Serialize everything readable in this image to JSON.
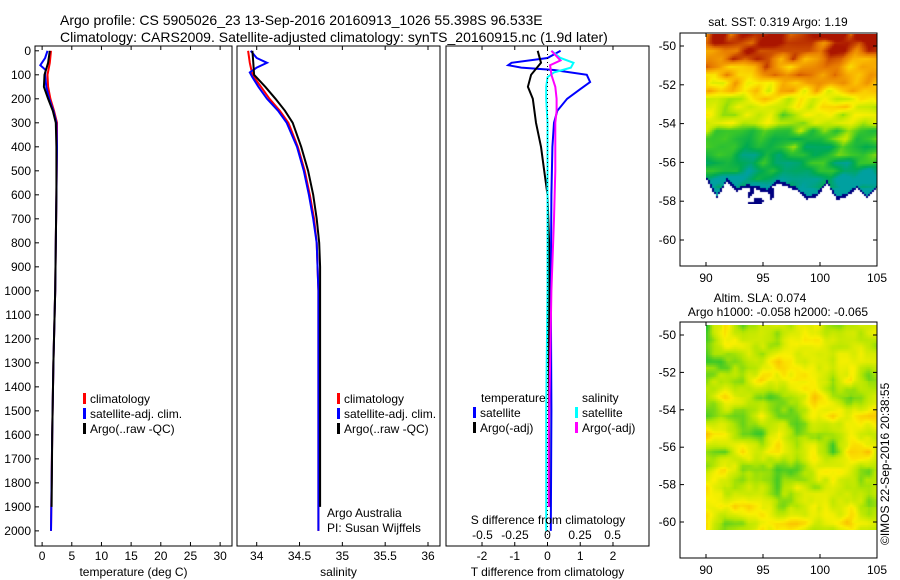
{
  "title_line1": "Argo profile: CS 5905026_23 13-Sep-2016 20160913_1026 55.398S 96.533E",
  "title_line2": "Climatology: CARS2009. Satellite-adjusted climatology: synTS_20160915.nc (1.9d later)",
  "colors": {
    "climatology": "#ff0000",
    "satellite": "#0000ff",
    "argo": "#000000",
    "sal_satellite": "#00ffff",
    "sal_argo": "#ff00ff"
  },
  "chart_data": [
    {
      "type": "line",
      "name": "temperature",
      "xlabel": "temperature (deg C)",
      "ylabel": "depth",
      "xlim": [
        -1.2,
        32
      ],
      "ylim": [
        2063,
        -20
      ],
      "xticks": [
        0,
        5,
        10,
        15,
        20,
        25,
        30
      ],
      "yticks": [
        0,
        100,
        200,
        300,
        400,
        500,
        600,
        700,
        800,
        900,
        1000,
        1100,
        1200,
        1300,
        1400,
        1500,
        1600,
        1700,
        1800,
        1900,
        2000
      ],
      "legend": [
        "climatology",
        "satellite-adj. clim.",
        "Argo(..raw -QC)"
      ],
      "series": [
        {
          "name": "climatology",
          "color": "#ff0000",
          "depth": [
            0,
            50,
            100,
            150,
            200,
            250,
            300,
            400,
            600,
            800,
            1000,
            1300,
            1600,
            2000
          ],
          "values": [
            1.5,
            1.3,
            0.9,
            1.0,
            1.4,
            2.0,
            2.5,
            2.5,
            2.4,
            2.3,
            2.2,
            1.9,
            1.7,
            1.5
          ]
        },
        {
          "name": "satellite-adj. clim.",
          "color": "#0000ff",
          "depth": [
            0,
            30,
            60,
            80,
            100,
            150,
            200,
            250,
            300,
            400,
            600,
            800,
            1000,
            1300,
            1600,
            2000
          ],
          "values": [
            0.9,
            0.5,
            -0.3,
            0.6,
            0.5,
            0.7,
            1.2,
            1.9,
            2.4,
            2.5,
            2.4,
            2.3,
            2.2,
            1.9,
            1.7,
            1.5
          ]
        },
        {
          "name": "Argo(..raw -QC)",
          "color": "#000000",
          "depth": [
            0,
            50,
            100,
            150,
            200,
            250,
            300,
            400,
            600,
            800,
            1000,
            1300,
            1600,
            1900
          ],
          "values": [
            1.3,
            1.0,
            0.4,
            0.3,
            1.0,
            1.8,
            2.3,
            2.4,
            2.4,
            2.3,
            2.2,
            1.9,
            1.7,
            1.6
          ]
        }
      ]
    },
    {
      "type": "line",
      "name": "salinity",
      "xlabel": "salinity",
      "xlim": [
        33.77,
        36.14
      ],
      "ylim": [
        2063,
        -20
      ],
      "xticks": [
        "34",
        "34.5",
        "35",
        "35.5",
        "36"
      ],
      "legend": [
        "climatology",
        "satellite-adj. clim.",
        "Argo(..raw -QC)"
      ],
      "annotation": [
        "Argo Australia",
        "PI: Susan Wijffels"
      ],
      "series": [
        {
          "name": "climatology",
          "color": "#ff0000",
          "depth": [
            0,
            50,
            100,
            150,
            200,
            250,
            300,
            400,
            500,
            600,
            700,
            800,
            1000,
            1500,
            2000
          ],
          "values": [
            33.9,
            33.92,
            33.95,
            34.05,
            34.15,
            34.27,
            34.37,
            34.48,
            34.56,
            34.62,
            34.67,
            34.7,
            34.72,
            34.72,
            34.72
          ]
        },
        {
          "name": "satellite-adj. clim.",
          "color": "#0000ff",
          "depth": [
            0,
            30,
            50,
            70,
            90,
            110,
            150,
            200,
            250,
            300,
            400,
            500,
            600,
            700,
            800,
            1000,
            1500,
            2000
          ],
          "values": [
            33.93,
            34.0,
            34.12,
            34.0,
            33.92,
            33.95,
            34.02,
            34.12,
            34.25,
            34.35,
            34.47,
            34.55,
            34.61,
            34.66,
            34.7,
            34.72,
            34.72,
            34.72
          ]
        },
        {
          "name": "Argo(..raw -QC)",
          "color": "#000000",
          "depth": [
            0,
            50,
            100,
            150,
            200,
            250,
            300,
            400,
            500,
            600,
            700,
            800,
            900,
            1000,
            1500,
            1900
          ],
          "values": [
            33.95,
            33.96,
            33.97,
            34.1,
            34.22,
            34.33,
            34.42,
            34.52,
            34.6,
            34.66,
            34.7,
            34.73,
            34.74,
            34.74,
            34.74,
            34.74
          ]
        }
      ]
    },
    {
      "type": "line",
      "name": "difference",
      "xlabel": "T difference from climatology",
      "x2label": "S difference from climatology",
      "xlim": [
        -3.1,
        3.1
      ],
      "x2lim": [
        -0.78,
        0.78
      ],
      "ylim": [
        2063,
        -20
      ],
      "xticks": [
        "-2",
        "-1",
        "0",
        "1",
        "2"
      ],
      "x2ticks": [
        "-0.5",
        "-0.25",
        "0",
        "0.25",
        "0.5"
      ],
      "legend": {
        "temperature": "temperature",
        "salinity": "salinity",
        "items": [
          "satellite",
          "Argo(-adj)",
          "satellite",
          "Argo(-adj)"
        ]
      },
      "series": [
        {
          "name": "T satellite",
          "color": "#0000ff",
          "axis": "T",
          "depth": [
            0,
            30,
            50,
            60,
            70,
            80,
            100,
            130,
            160,
            200,
            250,
            300,
            400,
            600,
            1000,
            1500,
            2000
          ],
          "values": [
            0.4,
            0.0,
            -1.1,
            -1.2,
            -0.8,
            0.2,
            1.2,
            1.3,
            1.0,
            0.6,
            0.3,
            0.2,
            0.15,
            0.12,
            0.1,
            0.12,
            0.1
          ]
        },
        {
          "name": "T Argo(-adj)",
          "color": "#000000",
          "axis": "T",
          "depth": [
            0,
            50,
            100,
            150,
            200,
            250,
            300,
            400,
            500,
            600,
            800,
            1000,
            1500,
            1900
          ],
          "values": [
            -0.3,
            -0.2,
            -0.5,
            -0.6,
            -0.45,
            -0.4,
            -0.35,
            -0.2,
            -0.1,
            0.0,
            0.05,
            0.05,
            0.05,
            0.05
          ]
        },
        {
          "name": "S satellite",
          "color": "#00ffff",
          "axis": "S",
          "depth": [
            0,
            30,
            50,
            70,
            90,
            110,
            150,
            200,
            300,
            500,
            1000,
            1500,
            2000
          ],
          "values": [
            0.03,
            0.1,
            0.2,
            0.18,
            0.05,
            0.0,
            -0.01,
            -0.01,
            0.0,
            0.0,
            0.0,
            -0.01,
            -0.01
          ]
        },
        {
          "name": "S Argo(-adj)",
          "color": "#ff00ff",
          "axis": "S",
          "depth": [
            0,
            40,
            60,
            100,
            150,
            200,
            250,
            300,
            400,
            500,
            700,
            1000,
            1300,
            1600,
            1900
          ],
          "values": [
            0.03,
            0.1,
            0.02,
            0.03,
            0.06,
            0.07,
            0.07,
            0.06,
            0.06,
            0.06,
            0.05,
            0.03,
            0.02,
            0.01,
            0.01
          ]
        }
      ]
    },
    {
      "type": "heatmap",
      "name": "sst-map",
      "title": "sat. SST: 0.319 Argo: 1.19",
      "xticks": [
        "90",
        "95",
        "100",
        "105"
      ],
      "yticks": [
        "-50",
        "-52",
        "-54",
        "-56",
        "-58",
        "-60"
      ],
      "xlim": [
        87.7,
        105.3
      ],
      "ylim": [
        -61.3,
        -49.3
      ]
    },
    {
      "type": "heatmap",
      "name": "sla-map",
      "title1": "Altim. SLA: 0.074",
      "title2": "Argo h1000: -0.058 h2000: -0.065",
      "xticks": [
        "90",
        "95",
        "100",
        "105"
      ],
      "yticks": [
        "-50",
        "-52",
        "-54",
        "-56",
        "-58",
        "-60"
      ],
      "xlim": [
        87.7,
        105.3
      ],
      "ylim": [
        -61.3,
        -49.3
      ]
    }
  ],
  "timestamp": "©IMOS 22-Sep-2016 20:38:55"
}
